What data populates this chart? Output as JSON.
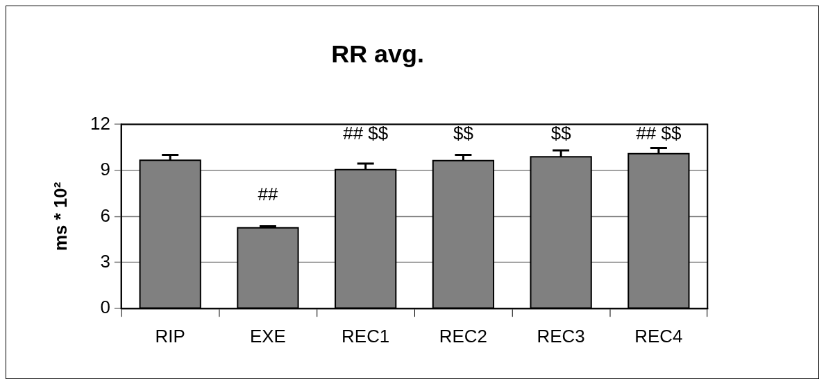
{
  "chart_data": {
    "type": "bar",
    "title": "RR avg.",
    "ylabel": "ms * 10²",
    "categories": [
      "RIP",
      "EXE",
      "REC1",
      "REC2",
      "REC3",
      "REC4"
    ],
    "values": [
      9.67,
      5.26,
      9.05,
      9.64,
      9.89,
      10.09
    ],
    "errors": [
      0.35,
      0.1,
      0.4,
      0.37,
      0.42,
      0.38
    ],
    "value_labels": [
      null,
      "##",
      "## $$",
      "$$",
      "$$",
      "## $$"
    ],
    "color": "#808080",
    "ylim": [
      0,
      12
    ],
    "yticks": [
      0,
      3,
      6,
      9,
      12
    ],
    "grid": "y",
    "legend": false
  }
}
